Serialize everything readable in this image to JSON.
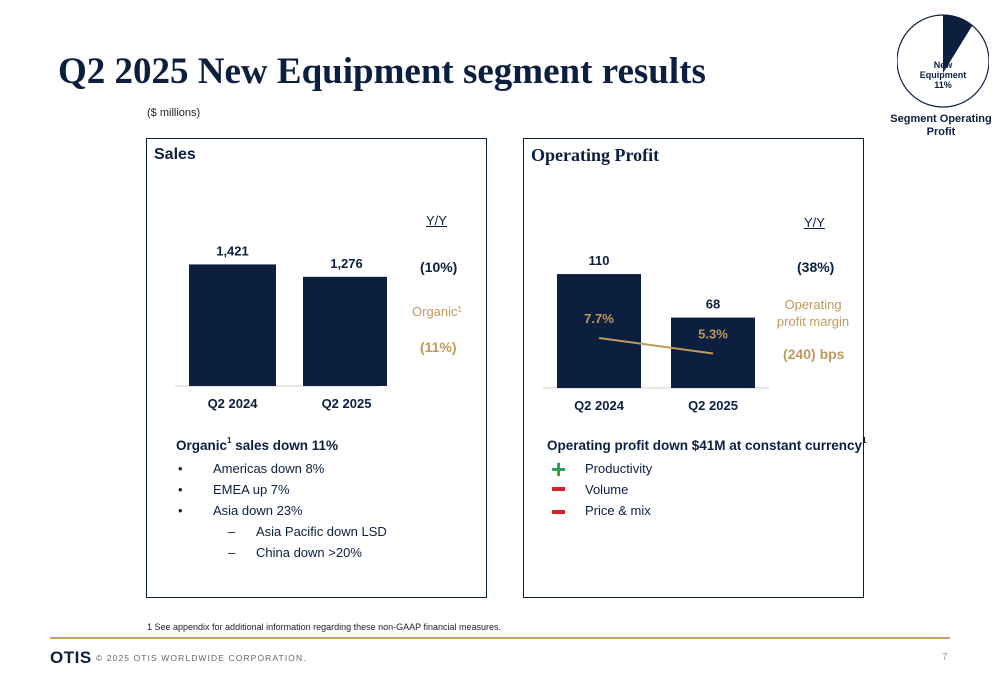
{
  "header": {
    "title": "Q2 2025 New Equipment segment results",
    "units": "($ millions)"
  },
  "pie": {
    "label_line1": "New",
    "label_line2": "Equipment",
    "label_line3": "11%",
    "caption_line1": "Segment Operating",
    "caption_line2": "Profit",
    "share": 0.11,
    "colors": {
      "slice": "#0d1f3f",
      "ring": "#0d1f3f",
      "background": "#ffffff"
    }
  },
  "sales_panel": {
    "title": "Sales",
    "yy_heading": "Y/Y",
    "yy_value": "(10%)",
    "organic_label": "Organic",
    "organic_sup": "1",
    "organic_value": "(11%)",
    "commentary": {
      "heading_pre": "Organic",
      "heading_sup": "1",
      "heading_post": " sales down 11%",
      "bullets": [
        "Americas down 8%",
        "EMEA up 7%",
        "Asia down 23%"
      ],
      "bullet_marker": "•",
      "sub_bullets": [
        "Asia Pacific down LSD",
        "China down >20%"
      ],
      "sub_marker": "–"
    }
  },
  "profit_panel": {
    "title": "Operating Profit",
    "yy_heading": "Y/Y",
    "yy_value": "(38%)",
    "margin_label_line1": "Operating",
    "margin_label_line2": "profit margin",
    "margin_change": "(240) bps",
    "commentary": {
      "heading": "Operating profit down $41M at constant currency",
      "heading_sup": "1",
      "items": [
        {
          "icon": "plus-icon",
          "label": "Productivity"
        },
        {
          "icon": "minus-icon",
          "label": "Volume"
        },
        {
          "icon": "minus-icon",
          "label": "Price & mix"
        }
      ]
    }
  },
  "chart_data": [
    {
      "type": "bar",
      "title": "Sales",
      "categories": [
        "Q2 2024",
        "Q2 2025"
      ],
      "values": [
        1421,
        1276
      ],
      "value_labels": [
        "1,421",
        "1,276"
      ],
      "ylim": [
        0,
        1800
      ],
      "colors": {
        "bar": "#0d1f3f",
        "axis": "#cccccc"
      }
    },
    {
      "type": "bar",
      "title": "Operating Profit",
      "categories": [
        "Q2 2024",
        "Q2 2025"
      ],
      "values": [
        110,
        68
      ],
      "value_labels": [
        "110",
        "68"
      ],
      "ylim": [
        0,
        140
      ],
      "overlay": {
        "type": "line",
        "values": [
          7.7,
          5.3
        ],
        "value_labels": [
          "7.7%",
          "5.3%"
        ],
        "ylim": [
          0,
          20
        ]
      },
      "colors": {
        "bar": "#0d1f3f",
        "line": "#c0995a",
        "axis": "#cccccc"
      }
    }
  ],
  "footer": {
    "footnote": "1 See appendix for additional information regarding these non-GAAP financial measures.",
    "logo": "OTIS",
    "copyright": "© 2025 OTIS WORLDWIDE CORPORATION.",
    "page_number": "7"
  }
}
